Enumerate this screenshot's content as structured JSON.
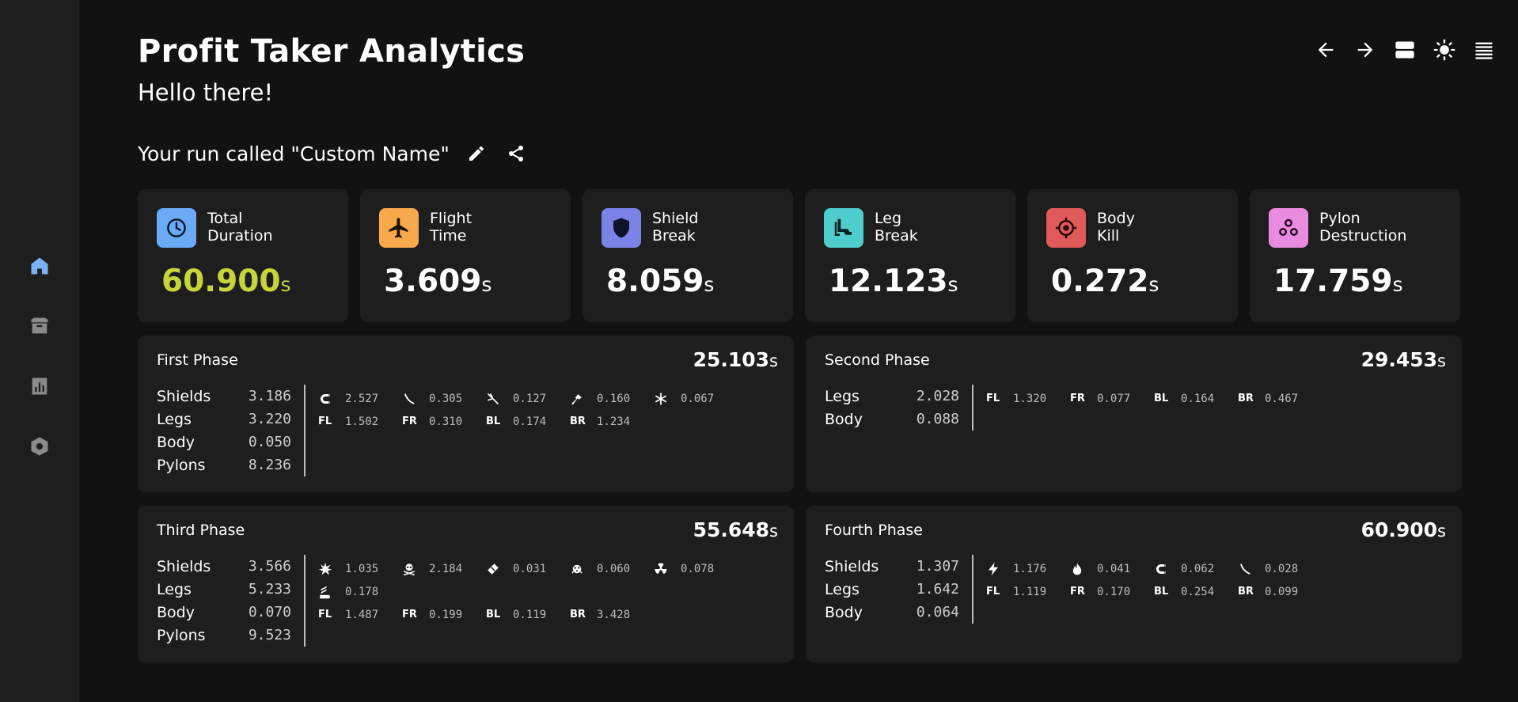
{
  "app": {
    "title": "Profit Taker Analytics",
    "greeting": "Hello there!",
    "run_label": "Your run called \"Custom Name\""
  },
  "sidebar": {
    "items": [
      {
        "name": "home-icon",
        "active": true
      },
      {
        "name": "storage-icon",
        "active": false
      },
      {
        "name": "analytics-icon",
        "active": false
      },
      {
        "name": "settings-icon",
        "active": false
      }
    ]
  },
  "colors": {
    "accent": "#c6d53c",
    "active_nav": "#7ab3f5",
    "card_bg": "#1e1e1e",
    "page_bg": "#121212"
  },
  "cards": [
    {
      "label_line1": "Total",
      "label_line2": "Duration",
      "value": "60.900",
      "unit": "s",
      "icon": "clock-icon",
      "color": "#6aaaf7",
      "highlight": true
    },
    {
      "label_line1": "Flight",
      "label_line2": "Time",
      "value": "3.609",
      "unit": "s",
      "icon": "airplane-icon",
      "color": "#f7a94c",
      "highlight": false
    },
    {
      "label_line1": "Shield",
      "label_line2": "Break",
      "value": "8.059",
      "unit": "s",
      "icon": "shield-icon",
      "color": "#7b84e6",
      "highlight": false
    },
    {
      "label_line1": "Leg",
      "label_line2": "Break",
      "value": "12.123",
      "unit": "s",
      "icon": "leg-icon",
      "color": "#4fcccc",
      "highlight": false
    },
    {
      "label_line1": "Body",
      "label_line2": "Kill",
      "value": "0.272",
      "unit": "s",
      "icon": "crosshair-icon",
      "color": "#e05a5a",
      "highlight": false
    },
    {
      "label_line1": "Pylon",
      "label_line2": "Destruction",
      "value": "17.759",
      "unit": "s",
      "icon": "pylon-icon",
      "color": "#e98be0",
      "highlight": false
    }
  ],
  "phases": [
    {
      "title": "First Phase",
      "total": "25.103",
      "unit": "s",
      "stats": [
        {
          "name": "Shields",
          "value": "3.186"
        },
        {
          "name": "Legs",
          "value": "3.220"
        },
        {
          "name": "Body",
          "value": "0.050"
        },
        {
          "name": "Pylons",
          "value": "8.236"
        }
      ],
      "detail_rows": [
        [
          {
            "icon": "magnet-icon",
            "value": "2.527"
          },
          {
            "icon": "cold-icon",
            "value": "0.305"
          },
          {
            "icon": "slash-icon",
            "value": "0.127"
          },
          {
            "icon": "impact-icon",
            "value": "0.160"
          },
          {
            "icon": "puncture-icon",
            "value": "0.067"
          }
        ],
        [
          {
            "label": "FL",
            "value": "1.502"
          },
          {
            "label": "FR",
            "value": "0.310"
          },
          {
            "label": "BL",
            "value": "0.174"
          },
          {
            "label": "BR",
            "value": "1.234"
          }
        ]
      ]
    },
    {
      "title": "Second Phase",
      "total": "29.453",
      "unit": "s",
      "stats": [
        {
          "name": "Legs",
          "value": "2.028"
        },
        {
          "name": "Body",
          "value": "0.088"
        }
      ],
      "detail_rows": [
        [
          {
            "label": "FL",
            "value": "1.320"
          },
          {
            "label": "FR",
            "value": "0.077"
          },
          {
            "label": "BL",
            "value": "0.164"
          },
          {
            "label": "BR",
            "value": "0.467"
          }
        ]
      ]
    },
    {
      "title": "Third Phase",
      "total": "55.648",
      "unit": "s",
      "stats": [
        {
          "name": "Shields",
          "value": "3.566"
        },
        {
          "name": "Legs",
          "value": "5.233"
        },
        {
          "name": "Body",
          "value": "0.070"
        },
        {
          "name": "Pylons",
          "value": "9.523"
        }
      ],
      "detail_rows": [
        [
          {
            "icon": "blast-icon",
            "value": "1.035"
          },
          {
            "icon": "toxin-icon",
            "value": "2.184"
          },
          {
            "icon": "corrosive-icon",
            "value": "0.031"
          },
          {
            "icon": "viral-icon",
            "value": "0.060"
          },
          {
            "icon": "radiation-icon",
            "value": "0.078"
          }
        ],
        [
          {
            "icon": "gas-icon",
            "value": "0.178"
          }
        ],
        [
          {
            "label": "FL",
            "value": "1.487"
          },
          {
            "label": "FR",
            "value": "0.199"
          },
          {
            "label": "BL",
            "value": "0.119"
          },
          {
            "label": "BR",
            "value": "3.428"
          }
        ]
      ]
    },
    {
      "title": "Fourth Phase",
      "total": "60.900",
      "unit": "s",
      "stats": [
        {
          "name": "Shields",
          "value": "1.307"
        },
        {
          "name": "Legs",
          "value": "1.642"
        },
        {
          "name": "Body",
          "value": "0.064"
        }
      ],
      "detail_rows": [
        [
          {
            "icon": "electricity-icon",
            "value": "1.176"
          },
          {
            "icon": "heat-icon",
            "value": "0.041"
          },
          {
            "icon": "magnet-icon",
            "value": "0.062"
          },
          {
            "icon": "cold-icon",
            "value": "0.028"
          }
        ],
        [
          {
            "label": "FL",
            "value": "1.119"
          },
          {
            "label": "FR",
            "value": "0.170"
          },
          {
            "label": "BL",
            "value": "0.254"
          },
          {
            "label": "BR",
            "value": "0.099"
          }
        ]
      ]
    }
  ]
}
